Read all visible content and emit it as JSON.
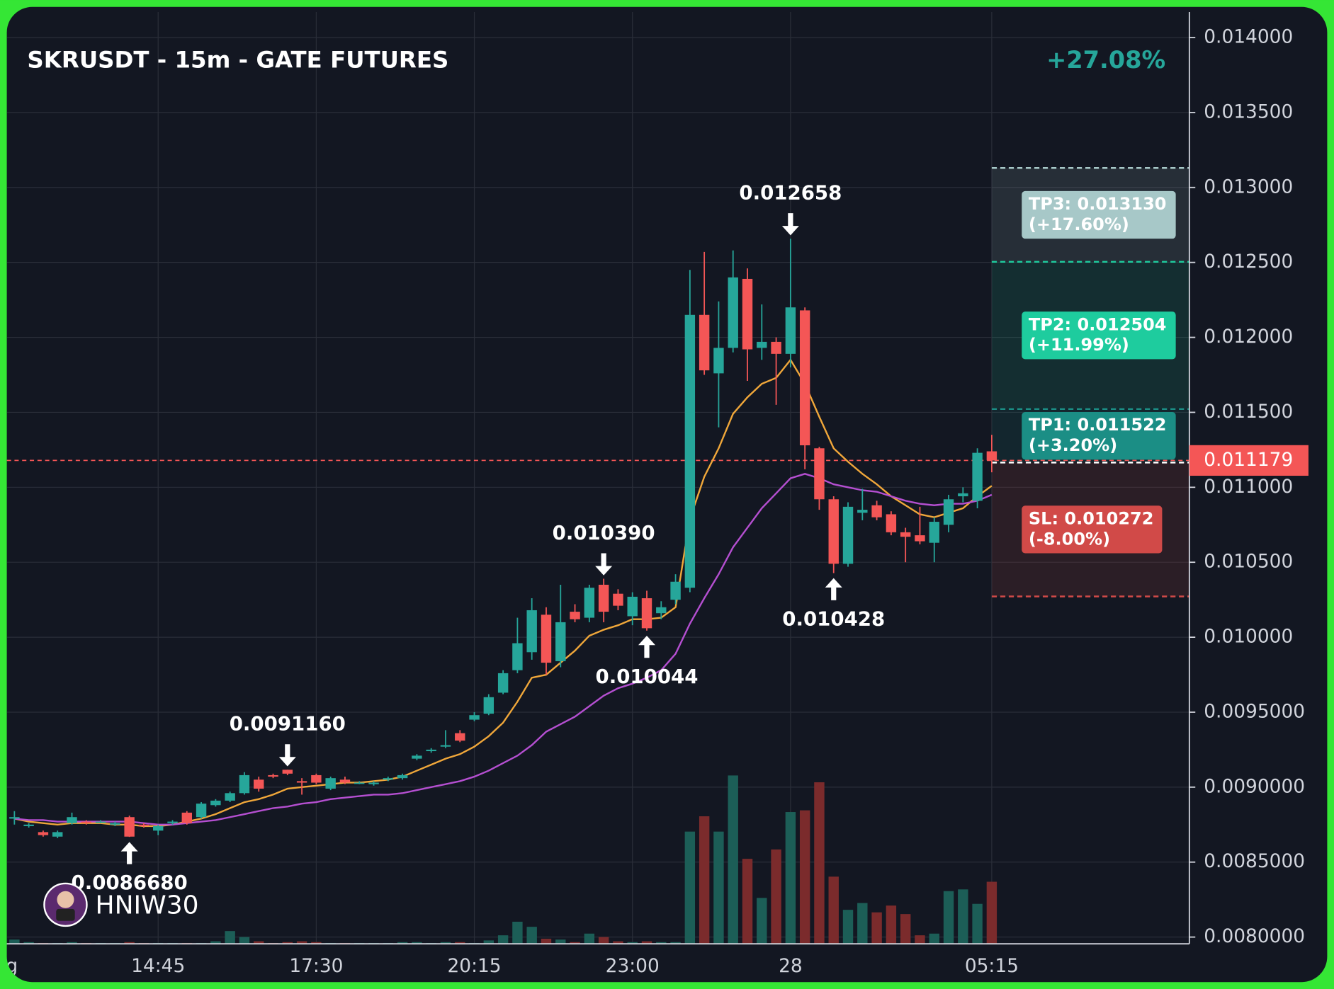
{
  "chart_data": {
    "type": "candlestick",
    "title": "SKRUSDT - 15m - GATE FUTURES",
    "change": "+27.08%",
    "watermark": "HNIW30",
    "categories": [
      "g",
      null,
      null,
      null,
      null,
      null,
      null,
      null,
      null,
      null,
      "14:45",
      null,
      null,
      null,
      null,
      null,
      null,
      null,
      null,
      null,
      null,
      "17:30",
      null,
      null,
      null,
      null,
      null,
      null,
      null,
      null,
      null,
      null,
      "20:15",
      null,
      null,
      null,
      null,
      null,
      null,
      null,
      null,
      null,
      null,
      "23:00",
      null,
      null,
      null,
      null,
      null,
      null,
      null,
      null,
      null,
      null,
      "28",
      null,
      null,
      null,
      null,
      null,
      null,
      null,
      null,
      null,
      null,
      null,
      null,
      null,
      "05:15"
    ],
    "open": [
      0.00879,
      0.00874,
      0.0087,
      0.00867,
      0.00876,
      0.00877,
      0.00877,
      0.00875,
      0.0088,
      0.00875,
      0.00871,
      0.00876,
      0.00883,
      0.0088,
      0.00888,
      0.00891,
      0.00896,
      0.00905,
      0.00908,
      0.009116,
      0.00904,
      0.00908,
      0.00899,
      0.00905,
      0.00903,
      0.00902,
      0.00905,
      0.00906,
      0.00919,
      0.00924,
      0.00927,
      0.00936,
      0.00945,
      0.00949,
      0.00963,
      0.00978,
      0.0099,
      0.01015,
      0.00984,
      0.01017,
      0.01013,
      0.01035,
      0.01029,
      0.01014,
      0.01026,
      0.01016,
      0.01025,
      0.01033,
      0.01215,
      0.01176,
      0.01193,
      0.01239,
      0.01193,
      0.01197,
      0.01189,
      0.01218,
      0.01126,
      0.01092,
      0.01049,
      0.01083,
      0.01088,
      0.01082,
      0.0107,
      0.01068,
      0.01063,
      0.01075,
      0.01094,
      0.01091,
      0.01124
    ],
    "high": [
      0.00884,
      0.00876,
      0.00871,
      0.00871,
      0.00883,
      0.00878,
      0.00878,
      0.00877,
      0.00881,
      0.00876,
      0.00875,
      0.00878,
      0.00884,
      0.0089,
      0.00892,
      0.00897,
      0.0091,
      0.00907,
      0.00909,
      0.009116,
      0.00906,
      0.00909,
      0.00907,
      0.00907,
      0.00904,
      0.00904,
      0.00907,
      0.00909,
      0.00922,
      0.00926,
      0.00938,
      0.00938,
      0.0095,
      0.00962,
      0.00978,
      0.01013,
      0.01026,
      0.0102,
      0.01035,
      0.01022,
      0.01035,
      0.01039,
      0.01032,
      0.0103,
      0.01031,
      0.01024,
      0.01042,
      0.01245,
      0.01257,
      0.01224,
      0.01258,
      0.01246,
      0.01222,
      0.012,
      0.012658,
      0.0122,
      0.01127,
      0.01094,
      0.0109,
      0.01099,
      0.01091,
      0.01084,
      0.01073,
      0.01087,
      0.0108,
      0.01095,
      0.011,
      0.01126,
      0.01135
    ],
    "low": [
      0.00875,
      0.00873,
      0.00867,
      0.00866,
      0.00875,
      0.00875,
      0.00876,
      0.00874,
      0.008668,
      0.00873,
      0.00868,
      0.00875,
      0.00875,
      0.00879,
      0.00887,
      0.0089,
      0.00895,
      0.00897,
      0.00906,
      0.00908,
      0.00895,
      0.00902,
      0.00898,
      0.00902,
      0.00902,
      0.00901,
      0.00904,
      0.00905,
      0.00918,
      0.00923,
      0.00926,
      0.0093,
      0.00944,
      0.00948,
      0.00962,
      0.00976,
      0.00985,
      0.00975,
      0.0098,
      0.0101,
      0.0101,
      0.0101,
      0.01018,
      0.01008,
      0.010044,
      0.01012,
      0.01022,
      0.0103,
      0.01175,
      0.0114,
      0.0119,
      0.01171,
      0.01185,
      0.01155,
      0.0118,
      0.01112,
      0.01085,
      0.010428,
      0.01047,
      0.01078,
      0.01078,
      0.01068,
      0.0105,
      0.01062,
      0.0105,
      0.0107,
      0.0109,
      0.01086,
      0.0111
    ],
    "close": [
      0.0088,
      0.00875,
      0.00868,
      0.0087,
      0.0088,
      0.00876,
      0.00877,
      0.00876,
      0.00867,
      0.00874,
      0.00874,
      0.00877,
      0.00876,
      0.00889,
      0.00891,
      0.00896,
      0.00908,
      0.00899,
      0.00907,
      0.00909,
      0.00903,
      0.00903,
      0.00906,
      0.00903,
      0.00903,
      0.00903,
      0.00906,
      0.00908,
      0.00921,
      0.00925,
      0.00928,
      0.00931,
      0.00948,
      0.0096,
      0.00976,
      0.00996,
      0.01018,
      0.00983,
      0.0101,
      0.01012,
      0.01033,
      0.01017,
      0.01021,
      0.01027,
      0.01006,
      0.0102,
      0.01037,
      0.01215,
      0.01178,
      0.01193,
      0.0124,
      0.01192,
      0.01197,
      0.01189,
      0.0122,
      0.01128,
      0.01092,
      0.01049,
      0.01087,
      0.01085,
      0.0108,
      0.0107,
      0.01067,
      0.01064,
      0.01077,
      0.01092,
      0.01096,
      0.01123,
      0.011179
    ],
    "volume": [
      5,
      2,
      1,
      1,
      2,
      1,
      1,
      1,
      2,
      1,
      1,
      1,
      1,
      1,
      3,
      15,
      8,
      3,
      1,
      2,
      3,
      2,
      1,
      1,
      1,
      1,
      1,
      2,
      2,
      1,
      2,
      2,
      1,
      4,
      10,
      26,
      20,
      6,
      5,
      2,
      12,
      8,
      3,
      2,
      3,
      2,
      2,
      132,
      150,
      132,
      198,
      100,
      54,
      111,
      155,
      157,
      190,
      79,
      40,
      48,
      37,
      45,
      35,
      10,
      12,
      62,
      64,
      47,
      73
    ],
    "volume_ylim": [
      0,
      230
    ],
    "up_color": "#26a69a",
    "down_color": "#f45656",
    "up_volume_color": "#1c5e57",
    "down_volume_color": "#7b2b2c",
    "series": [
      {
        "color": "#f0a73a",
        "values": [
          0.00879,
          0.00877,
          0.00876,
          0.00875,
          0.00876,
          0.00876,
          0.00876,
          0.00875,
          0.00875,
          0.00874,
          0.00874,
          0.00875,
          0.00877,
          0.00879,
          0.00882,
          0.00886,
          0.0089,
          0.00892,
          0.00895,
          0.00899,
          0.009,
          0.00901,
          0.00902,
          0.00903,
          0.00903,
          0.00904,
          0.00905,
          0.00907,
          0.00911,
          0.00915,
          0.00919,
          0.00922,
          0.00927,
          0.00934,
          0.00943,
          0.00957,
          0.00973,
          0.00975,
          0.00983,
          0.00991,
          0.01001,
          0.01005,
          0.01008,
          0.01012,
          0.01012,
          0.01013,
          0.0102,
          0.01079,
          0.01107,
          0.01126,
          0.01149,
          0.0116,
          0.01169,
          0.01173,
          0.01185,
          0.01169,
          0.01147,
          0.01126,
          0.01117,
          0.01109,
          0.01102,
          0.01094,
          0.01088,
          0.01082,
          0.0108,
          0.01083,
          0.01086,
          0.01094,
          0.01101
        ]
      },
      {
        "color": "#b54fd1",
        "values": [
          0.00879,
          0.00878,
          0.00878,
          0.00877,
          0.00877,
          0.00877,
          0.00877,
          0.00877,
          0.00877,
          0.00876,
          0.00875,
          0.00875,
          0.00876,
          0.00877,
          0.00878,
          0.0088,
          0.00882,
          0.00884,
          0.00886,
          0.00887,
          0.00889,
          0.0089,
          0.00892,
          0.00893,
          0.00894,
          0.00895,
          0.00895,
          0.00896,
          0.00898,
          0.009,
          0.00902,
          0.00904,
          0.00907,
          0.00911,
          0.00916,
          0.00921,
          0.00928,
          0.00937,
          0.00942,
          0.00947,
          0.00954,
          0.00961,
          0.00966,
          0.00969,
          0.00973,
          0.00978,
          0.00989,
          0.01009,
          0.01026,
          0.01042,
          0.0106,
          0.01073,
          0.01086,
          0.01096,
          0.01106,
          0.01109,
          0.01106,
          0.01102,
          0.011,
          0.01098,
          0.01097,
          0.01094,
          0.01091,
          0.01089,
          0.01088,
          0.01089,
          0.01089,
          0.01091,
          0.01095
        ]
      }
    ],
    "annotations": [
      {
        "index": 54,
        "text": "0.012658",
        "value": 0.012658,
        "side": "high"
      },
      {
        "index": 41,
        "text": "0.010390",
        "value": 0.01039,
        "side": "high"
      },
      {
        "index": 19,
        "text": "0.0091160",
        "value": 0.009116,
        "side": "high"
      },
      {
        "index": 8,
        "text": "0.0086680",
        "value": 0.008668,
        "side": "low"
      },
      {
        "index": 44,
        "text": "0.010044",
        "value": 0.010044,
        "side": "low"
      },
      {
        "index": 57,
        "text": "0.010428",
        "value": 0.010428,
        "side": "low"
      }
    ],
    "levels": [
      {
        "label": "TP3: 0.013130",
        "change": "(+17.60%)",
        "value": 0.01313,
        "color": "#a7c8c8"
      },
      {
        "label": "TP2: 0.012504",
        "change": "(+11.99%)",
        "value": 0.012504,
        "color": "#1ecc9e"
      },
      {
        "label": "TP1: 0.011522",
        "change": "(+3.20%)",
        "value": 0.011522,
        "color": "#1b8e85"
      },
      {
        "label": "SL: 0.010272",
        "change": "(-8.00%)",
        "value": 0.010272,
        "color": "#d14a48"
      }
    ],
    "entry": 0.011165,
    "last_price": 0.011179,
    "ylim": [
      0.007955,
      0.01417
    ],
    "yticks": [
      {
        "value": 0.014,
        "label": "0.014000"
      },
      {
        "value": 0.0135,
        "label": "0.013500"
      },
      {
        "value": 0.013,
        "label": "0.013000"
      },
      {
        "value": 0.0125,
        "label": "0.012500"
      },
      {
        "value": 0.012,
        "label": "0.012000"
      },
      {
        "value": 0.0115,
        "label": "0.011500"
      },
      {
        "value": 0.011,
        "label": "0.011000"
      },
      {
        "value": 0.0105,
        "label": "0.010500"
      },
      {
        "value": 0.01,
        "label": "0.010000"
      },
      {
        "value": 0.0095,
        "label": "0.0095000"
      },
      {
        "value": 0.009,
        "label": "0.0090000"
      },
      {
        "value": 0.0085,
        "label": "0.0085000"
      },
      {
        "value": 0.008,
        "label": "0.0080000"
      }
    ],
    "grid": true
  }
}
